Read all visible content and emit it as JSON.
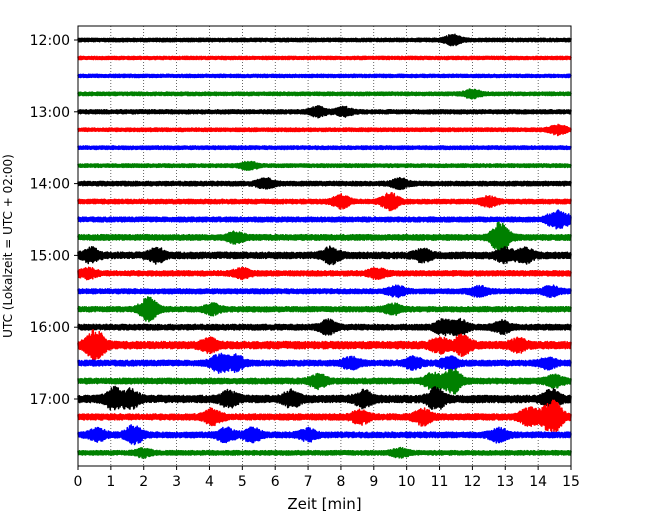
{
  "chart_data": {
    "type": "line",
    "subtype": "helicorder",
    "xlabel": "Zeit  [min]",
    "ylabel": "UTC (Lokalzeit = UTC + 02:00)",
    "xlim": [
      0,
      15
    ],
    "x_ticks": [
      0,
      1,
      2,
      3,
      4,
      5,
      6,
      7,
      8,
      9,
      10,
      11,
      12,
      13,
      14,
      15
    ],
    "x_tick_labels": [
      "0",
      "1",
      "2",
      "3",
      "4",
      "5",
      "6",
      "7",
      "8",
      "9",
      "10",
      "11",
      "12",
      "13",
      "14",
      "15"
    ],
    "x_grid": "dotted vertical at each minute",
    "y_tick_labels": [
      "12:00",
      "13:00",
      "14:00",
      "15:00",
      "16:00",
      "17:00"
    ],
    "row_interval_minutes": 15,
    "color_cycle": [
      "#000000",
      "#ff0000",
      "#0000ff",
      "#008000"
    ],
    "series": [
      {
        "start": "12:00",
        "amplitude": 0.22,
        "events": [
          [
            11.4,
            0.55
          ]
        ]
      },
      {
        "start": "12:15",
        "amplitude": 0.2,
        "events": []
      },
      {
        "start": "12:30",
        "amplitude": 0.2,
        "events": []
      },
      {
        "start": "12:45",
        "amplitude": 0.22,
        "events": [
          [
            12.0,
            0.45
          ]
        ]
      },
      {
        "start": "13:00",
        "amplitude": 0.25,
        "events": [
          [
            7.3,
            0.5
          ],
          [
            8.1,
            0.45
          ]
        ]
      },
      {
        "start": "13:15",
        "amplitude": 0.22,
        "events": [
          [
            14.6,
            0.5
          ]
        ]
      },
      {
        "start": "13:30",
        "amplitude": 0.22,
        "events": []
      },
      {
        "start": "13:45",
        "amplitude": 0.22,
        "events": [
          [
            5.2,
            0.4
          ]
        ]
      },
      {
        "start": "14:00",
        "amplitude": 0.28,
        "events": [
          [
            5.7,
            0.5
          ],
          [
            9.8,
            0.5
          ]
        ]
      },
      {
        "start": "14:15",
        "amplitude": 0.28,
        "events": [
          [
            8.0,
            0.7
          ],
          [
            9.5,
            0.9
          ],
          [
            12.5,
            0.5
          ]
        ]
      },
      {
        "start": "14:30",
        "amplitude": 0.3,
        "events": [
          [
            14.5,
            0.7
          ],
          [
            14.8,
            0.5
          ]
        ]
      },
      {
        "start": "14:45",
        "amplitude": 0.35,
        "events": [
          [
            4.8,
            0.5
          ],
          [
            12.8,
            0.95
          ],
          [
            12.9,
            0.7
          ]
        ]
      },
      {
        "start": "15:00",
        "amplitude": 0.4,
        "events": [
          [
            0.4,
            0.7
          ],
          [
            2.4,
            0.7
          ],
          [
            7.7,
            0.8
          ],
          [
            10.5,
            0.6
          ],
          [
            13.0,
            0.7
          ],
          [
            13.6,
            0.7
          ]
        ]
      },
      {
        "start": "15:15",
        "amplitude": 0.32,
        "events": [
          [
            0.3,
            0.5
          ],
          [
            5.0,
            0.5
          ],
          [
            9.1,
            0.5
          ]
        ]
      },
      {
        "start": "15:30",
        "amplitude": 0.3,
        "events": [
          [
            9.7,
            0.5
          ],
          [
            12.2,
            0.5
          ],
          [
            14.4,
            0.5
          ]
        ]
      },
      {
        "start": "15:45",
        "amplitude": 0.32,
        "events": [
          [
            2.1,
            0.7
          ],
          [
            2.2,
            0.6
          ],
          [
            4.1,
            0.5
          ],
          [
            9.6,
            0.5
          ]
        ]
      },
      {
        "start": "16:00",
        "amplitude": 0.35,
        "events": [
          [
            7.6,
            0.7
          ],
          [
            11.1,
            0.7
          ],
          [
            11.6,
            0.8
          ],
          [
            12.9,
            0.6
          ]
        ]
      },
      {
        "start": "16:15",
        "amplitude": 0.45,
        "events": [
          [
            0.6,
            1.1
          ],
          [
            0.4,
            0.7
          ],
          [
            4.0,
            0.6
          ],
          [
            11.0,
            0.7
          ],
          [
            11.7,
            1.0
          ],
          [
            13.4,
            0.6
          ]
        ]
      },
      {
        "start": "16:30",
        "amplitude": 0.35,
        "events": [
          [
            4.3,
            0.9
          ],
          [
            4.8,
            0.8
          ],
          [
            8.3,
            0.6
          ],
          [
            10.2,
            0.6
          ],
          [
            11.3,
            0.6
          ],
          [
            14.3,
            0.5
          ]
        ]
      },
      {
        "start": "16:45",
        "amplitude": 0.35,
        "events": [
          [
            7.3,
            0.7
          ],
          [
            10.8,
            0.8
          ],
          [
            11.4,
            1.4
          ],
          [
            14.5,
            0.6
          ]
        ]
      },
      {
        "start": "17:00",
        "amplitude": 0.45,
        "events": [
          [
            1.1,
            1.1
          ],
          [
            1.6,
            0.9
          ],
          [
            4.6,
            0.8
          ],
          [
            6.5,
            0.8
          ],
          [
            8.7,
            0.8
          ],
          [
            10.9,
            1.1
          ],
          [
            14.4,
            0.9
          ]
        ]
      },
      {
        "start": "17:15",
        "amplitude": 0.38,
        "events": [
          [
            4.1,
            0.8
          ],
          [
            8.6,
            0.7
          ],
          [
            10.5,
            0.8
          ],
          [
            13.7,
            0.9
          ],
          [
            14.5,
            1.5
          ],
          [
            14.2,
            0.7
          ]
        ]
      },
      {
        "start": "17:30",
        "amplitude": 0.35,
        "events": [
          [
            1.7,
            1.0
          ],
          [
            0.6,
            0.6
          ],
          [
            4.5,
            0.7
          ],
          [
            5.3,
            0.7
          ],
          [
            7.0,
            0.6
          ],
          [
            12.8,
            0.7
          ]
        ]
      },
      {
        "start": "17:45",
        "amplitude": 0.28,
        "events": [
          [
            2.0,
            0.4
          ],
          [
            9.8,
            0.4
          ]
        ]
      }
    ]
  }
}
